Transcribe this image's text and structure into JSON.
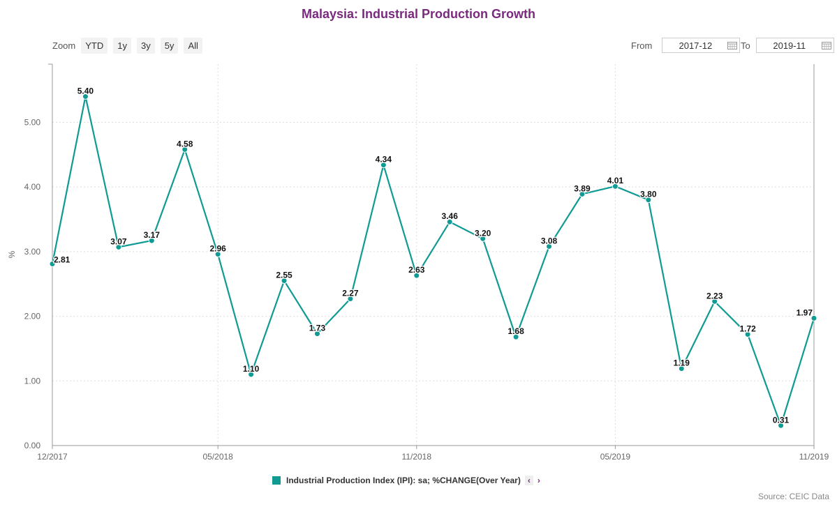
{
  "title": "Malaysia: Industrial Production Growth",
  "zoom": {
    "label": "Zoom",
    "buttons": [
      "YTD",
      "1y",
      "3y",
      "5y",
      "All"
    ]
  },
  "range": {
    "from_label": "From",
    "from_value": "2017-12",
    "to_label": "To",
    "to_value": "2019-11"
  },
  "legend": {
    "label": "Industrial Production Index (IPI): sa; %CHANGE(Over Year)",
    "prev": "‹",
    "next": "›"
  },
  "source": "Source: CEIC Data",
  "colors": {
    "series": "#0f9a93",
    "title": "#7a2a7e"
  },
  "chart_data": {
    "type": "line",
    "title": "Malaysia: Industrial Production Growth",
    "xlabel": "",
    "ylabel": "%",
    "ylim": [
      0,
      5.9
    ],
    "yticks": [
      "0.00",
      "1.00",
      "2.00",
      "3.00",
      "4.00",
      "5.00"
    ],
    "xticks": [
      "12/2017",
      "05/2018",
      "11/2018",
      "05/2019",
      "11/2019"
    ],
    "grid": true,
    "legend_position": "bottom",
    "x": [
      "2017-12",
      "2018-01",
      "2018-02",
      "2018-03",
      "2018-04",
      "2018-05",
      "2018-06",
      "2018-07",
      "2018-08",
      "2018-09",
      "2018-10",
      "2018-11",
      "2018-12",
      "2019-01",
      "2019-02",
      "2019-03",
      "2019-04",
      "2019-05",
      "2019-06",
      "2019-07",
      "2019-08",
      "2019-09",
      "2019-10",
      "2019-11"
    ],
    "series": [
      {
        "name": "Industrial Production Index (IPI): sa; %CHANGE(Over Year)",
        "values": [
          2.81,
          5.4,
          3.07,
          3.17,
          4.58,
          2.96,
          1.1,
          2.55,
          1.73,
          2.27,
          4.34,
          2.63,
          3.46,
          3.2,
          1.68,
          3.08,
          3.89,
          4.01,
          3.8,
          1.19,
          2.23,
          1.72,
          0.31,
          1.97
        ],
        "labels": [
          "2.81",
          "5.40",
          "3.07",
          "3.17",
          "4.58",
          "2.96",
          "1.10",
          "2.55",
          "1.73",
          "2.27",
          "4.34",
          "2.63",
          "3.46",
          "3.20",
          "1.68",
          "3.08",
          "3.89",
          "4.01",
          "3.80",
          "1.19",
          "2.23",
          "1.72",
          "0.31",
          "1.97"
        ]
      }
    ]
  }
}
